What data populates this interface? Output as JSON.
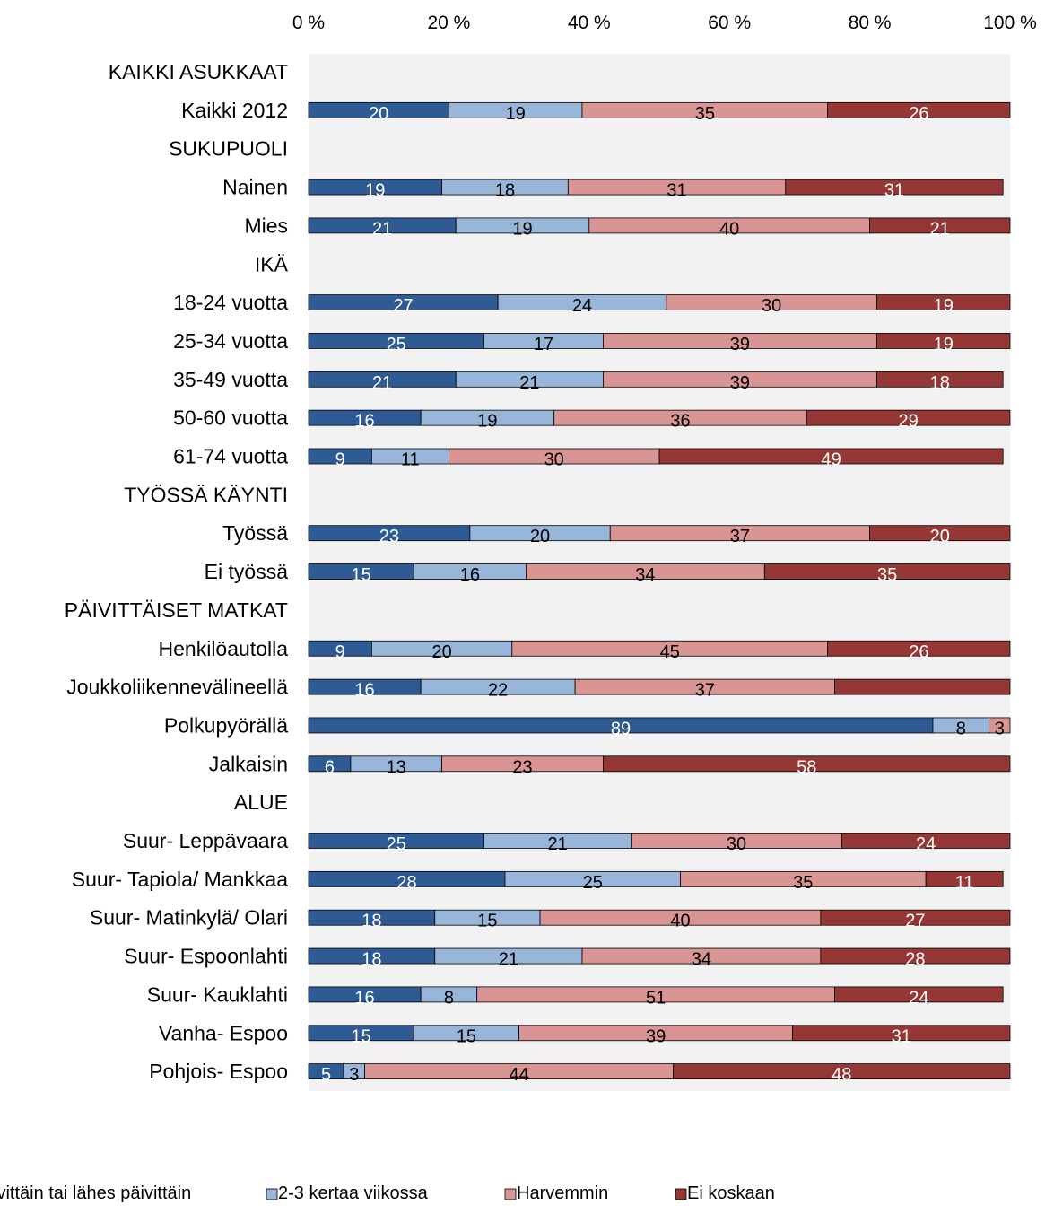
{
  "chart_data": {
    "type": "bar",
    "orientation": "horizontal",
    "stacked": true,
    "percent_stacked": true,
    "title": "",
    "xlabel": "",
    "ylabel": "",
    "xlim": [
      0,
      100
    ],
    "x_ticks": [
      "0 %",
      "20 %",
      "40 %",
      "60 %",
      "80 %",
      "100 %"
    ],
    "grid": false,
    "legend_position": "bottom",
    "rows": [
      {
        "label": "KAIKKI ASUKKAAT",
        "header": true
      },
      {
        "label": "Kaikki 2012",
        "values": [
          20,
          19,
          35,
          26
        ],
        "labels": [
          "20",
          "19",
          "35",
          "26"
        ]
      },
      {
        "label": "SUKUPUOLI",
        "header": true
      },
      {
        "label": "Nainen",
        "values": [
          19,
          18,
          31,
          31
        ],
        "labels": [
          "19",
          "18",
          "31",
          "31"
        ]
      },
      {
        "label": "Mies",
        "values": [
          21,
          19,
          40,
          21
        ],
        "labels": [
          "21",
          "19",
          "40",
          "21"
        ]
      },
      {
        "label": "IKÄ",
        "header": true
      },
      {
        "label": "18-24 vuotta",
        "values": [
          27,
          24,
          30,
          19
        ],
        "labels": [
          "27",
          "24",
          "30",
          "19"
        ]
      },
      {
        "label": "25-34 vuotta",
        "values": [
          25,
          17,
          39,
          19
        ],
        "labels": [
          "25",
          "17",
          "39",
          "19"
        ]
      },
      {
        "label": "35-49 vuotta",
        "values": [
          21,
          21,
          39,
          18
        ],
        "labels": [
          "21",
          "21",
          "39",
          "18"
        ]
      },
      {
        "label": "50-60 vuotta",
        "values": [
          16,
          19,
          36,
          29
        ],
        "labels": [
          "16",
          "19",
          "36",
          "29"
        ]
      },
      {
        "label": "61-74 vuotta",
        "values": [
          9,
          11,
          30,
          49
        ],
        "labels": [
          "9",
          "11",
          "30",
          "49"
        ]
      },
      {
        "label": "TYÖSSÄ KÄYNTI",
        "header": true
      },
      {
        "label": "Työssä",
        "values": [
          23,
          20,
          37,
          20
        ],
        "labels": [
          "23",
          "20",
          "37",
          "20"
        ]
      },
      {
        "label": "Ei työssä",
        "values": [
          15,
          16,
          34,
          35
        ],
        "labels": [
          "15",
          "16",
          "34",
          "35"
        ]
      },
      {
        "label": "PÄIVITTÄISET MATKAT",
        "header": true
      },
      {
        "label": "Henkilöautolla",
        "values": [
          9,
          20,
          45,
          26
        ],
        "labels": [
          "9",
          "20",
          "45",
          "26"
        ]
      },
      {
        "label": "Joukkoliikennevälineellä",
        "values": [
          16,
          22,
          37,
          25
        ],
        "labels": [
          "16",
          "22",
          "37",
          ""
        ]
      },
      {
        "label": "Polkupyörällä",
        "values": [
          89,
          8,
          3,
          0
        ],
        "labels": [
          "89",
          "8",
          "3",
          ""
        ]
      },
      {
        "label": "Jalkaisin",
        "values": [
          6,
          13,
          23,
          58
        ],
        "labels": [
          "6",
          "13",
          "23",
          "58"
        ]
      },
      {
        "label": "ALUE",
        "header": true
      },
      {
        "label": "Suur- Leppävaara",
        "values": [
          25,
          21,
          30,
          24
        ],
        "labels": [
          "25",
          "21",
          "30",
          "24"
        ]
      },
      {
        "label": "Suur- Tapiola/ Mankkaa",
        "values": [
          28,
          25,
          35,
          11
        ],
        "labels": [
          "28",
          "25",
          "35",
          "11"
        ]
      },
      {
        "label": "Suur- Matinkylä/ Olari",
        "values": [
          18,
          15,
          40,
          27
        ],
        "labels": [
          "18",
          "15",
          "40",
          "27"
        ]
      },
      {
        "label": "Suur- Espoonlahti",
        "values": [
          18,
          21,
          34,
          28
        ],
        "labels": [
          "18",
          "21",
          "34",
          "28"
        ]
      },
      {
        "label": "Suur- Kauklahti",
        "values": [
          16,
          8,
          51,
          24
        ],
        "labels": [
          "16",
          "8",
          "51",
          "24"
        ]
      },
      {
        "label": "Vanha- Espoo",
        "values": [
          15,
          15,
          39,
          31
        ],
        "labels": [
          "15",
          "15",
          "39",
          "31"
        ]
      },
      {
        "label": "Pohjois- Espoo",
        "values": [
          5,
          3,
          44,
          48
        ],
        "labels": [
          "5",
          "3",
          "44",
          "48"
        ]
      }
    ],
    "series": [
      {
        "name": "ivittäin tai lähes päivittäin",
        "color": "#2e5b94",
        "label_color": "#ffffff"
      },
      {
        "name": "2-3 kertaa viikossa",
        "color": "#98b5da",
        "label_color": "#000000"
      },
      {
        "name": "Harvemmin",
        "color": "#d99594",
        "label_color": "#000000"
      },
      {
        "name": "Ei koskaan",
        "color": "#953735",
        "label_color": "#ffffff"
      }
    ],
    "plot_background": "#f2f2f2"
  }
}
